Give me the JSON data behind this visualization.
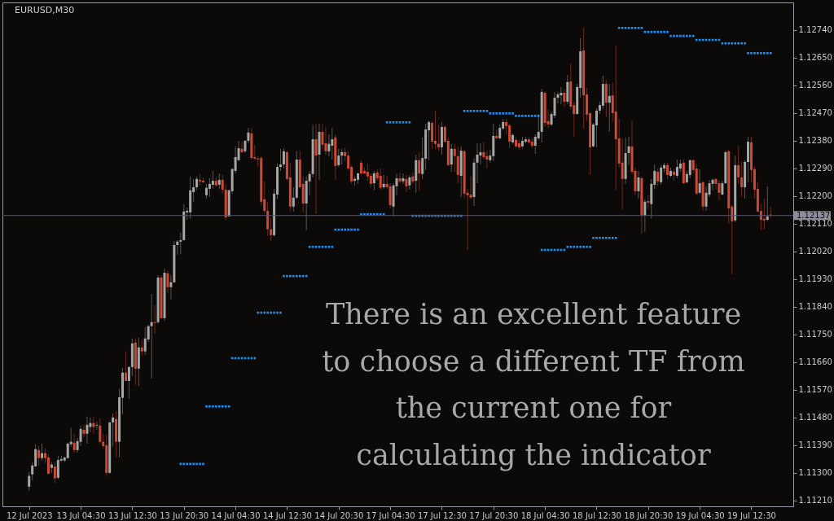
{
  "chart_data": {
    "type": "candlestick",
    "title": "EURUSD,M30",
    "categories": [
      "12 Jul 2023",
      null,
      null,
      null,
      null,
      null,
      null,
      null,
      null,
      null,
      null,
      null,
      null,
      null,
      null,
      null,
      "13 Jul 04:30",
      null,
      null,
      null,
      null,
      null,
      null,
      null,
      null,
      null,
      null,
      null,
      null,
      null,
      null,
      null,
      "13 Jul 12:30",
      null,
      null,
      null,
      null,
      null,
      null,
      null,
      null,
      null,
      null,
      null,
      null,
      null,
      null,
      null,
      "13 Jul 20:30",
      null,
      null,
      null,
      null,
      null,
      null,
      null,
      null,
      null,
      null,
      null,
      null,
      null,
      null,
      null,
      "14 Jul 04:30",
      null,
      null,
      null,
      null,
      null,
      null,
      null,
      null,
      null,
      null,
      null,
      null,
      null,
      null,
      null,
      "14 Jul 12:30",
      null,
      null,
      null,
      null,
      null,
      null,
      null,
      null,
      null,
      null,
      null,
      null,
      null,
      null,
      null,
      "14 Jul 20:30",
      null,
      null,
      null,
      null,
      null,
      null,
      null,
      null,
      null,
      null,
      null,
      null,
      null,
      null,
      null,
      "17 Jul 04:30",
      null,
      null,
      null,
      null,
      null,
      null,
      null,
      null,
      null,
      null,
      null,
      null,
      null,
      null,
      null,
      "17 Jul 12:30",
      null,
      null,
      null,
      null,
      null,
      null,
      null,
      null,
      null,
      null,
      null,
      null,
      null,
      null,
      null,
      "17 Jul 20:30",
      null,
      null,
      null,
      null,
      null,
      null,
      null,
      null,
      null,
      null,
      null,
      null,
      null,
      null,
      null,
      "18 Jul 04:30",
      null,
      null,
      null,
      null,
      null,
      null,
      null,
      null,
      null,
      null,
      null,
      null,
      null,
      null,
      null,
      "18 Jul 12:30",
      null,
      null,
      null,
      null,
      null,
      null,
      null,
      null,
      null,
      null,
      null,
      null,
      null,
      null,
      null,
      "18 Jul 20:30",
      null,
      null,
      null,
      null,
      null,
      null,
      null,
      null,
      null,
      null,
      null,
      null,
      null,
      null,
      null,
      "19 Jul 04:30",
      null,
      null,
      null,
      null,
      null,
      null,
      null,
      null,
      null,
      null,
      null,
      null,
      null,
      null,
      null,
      "19 Jul 12:30",
      null,
      null,
      null,
      null,
      null,
      null
    ],
    "ohlc": [
      [
        1.11255,
        1.11303,
        1.11242,
        1.1129
      ],
      [
        1.11295,
        1.11335,
        1.11276,
        1.11324
      ],
      [
        1.11321,
        1.11393,
        1.11319,
        1.11377
      ],
      [
        1.11374,
        1.11387,
        1.11324,
        1.11348
      ],
      [
        1.11348,
        1.11395,
        1.1134,
        1.11364
      ],
      [
        1.11364,
        1.1138,
        1.11332,
        1.11348
      ],
      [
        1.1135,
        1.11361,
        1.11295,
        1.11297
      ],
      [
        1.11316,
        1.11335,
        1.113,
        1.11327
      ],
      [
        1.11321,
        1.11337,
        1.11268,
        1.11282
      ],
      [
        1.11284,
        1.11356,
        1.11279,
        1.11342
      ],
      [
        1.1134,
        1.11356,
        1.11335,
        1.11345
      ],
      [
        1.1134,
        1.11353,
        1.11335,
        1.1135
      ],
      [
        1.11348,
        1.11398,
        1.11345,
        1.11395
      ],
      [
        1.11393,
        1.11446,
        1.11385,
        1.11401
      ],
      [
        1.11398,
        1.11427,
        1.11366,
        1.11374
      ],
      [
        1.11374,
        1.11414,
        1.11366,
        1.11403
      ],
      [
        1.11401,
        1.11454,
        1.11387,
        1.11443
      ],
      [
        1.1144,
        1.11456,
        1.11417,
        1.11427
      ],
      [
        1.11427,
        1.11483,
        1.11395,
        1.11456
      ],
      [
        1.11449,
        1.1148,
        1.11432,
        1.11462
      ],
      [
        1.11462,
        1.11483,
        1.11427,
        1.11449
      ],
      [
        1.11454,
        1.11467,
        1.1144,
        1.11456
      ],
      [
        1.11454,
        1.11478,
        1.11395,
        1.11401
      ],
      [
        1.11401,
        1.11427,
        1.1138,
        1.11387
      ],
      [
        1.1139,
        1.11424,
        1.1129,
        1.113
      ],
      [
        1.113,
        1.11467,
        1.11297,
        1.11464
      ],
      [
        1.11464,
        1.11493,
        1.11385,
        1.1148
      ],
      [
        1.11475,
        1.11501,
        1.1135,
        1.11401
      ],
      [
        1.11401,
        1.11573,
        1.1135,
        1.11546
      ],
      [
        1.11544,
        1.11642,
        1.11491,
        1.11626
      ],
      [
        1.11626,
        1.11695,
        1.11599,
        1.11599
      ],
      [
        1.11599,
        1.11647,
        1.11541,
        1.11644
      ],
      [
        1.11644,
        1.11737,
        1.11615,
        1.11721
      ],
      [
        1.11724,
        1.11737,
        1.11586,
        1.11639
      ],
      [
        1.11639,
        1.1174,
        1.11583,
        1.11708
      ],
      [
        1.11708,
        1.11732,
        1.11681,
        1.11695
      ],
      [
        1.11695,
        1.11774,
        1.11684,
        1.11737
      ],
      [
        1.11734,
        1.11782,
        1.11726,
        1.11777
      ],
      [
        1.11777,
        1.11882,
        1.11607,
        1.1179
      ],
      [
        1.1179,
        1.11845,
        1.11753,
        1.11787
      ],
      [
        1.1179,
        1.11943,
        1.11785,
        1.11935
      ],
      [
        1.11935,
        1.11943,
        1.11803,
        1.11803
      ],
      [
        1.11803,
        1.11965,
        1.11795,
        1.11951
      ],
      [
        1.11949,
        1.11957,
        1.11885,
        1.11904
      ],
      [
        1.11904,
        1.11943,
        1.11864,
        1.1192
      ],
      [
        1.1192,
        1.12055,
        1.11917,
        1.12041
      ],
      [
        1.12041,
        1.12057,
        1.1201,
        1.12052
      ],
      [
        1.12052,
        1.12081,
        1.12012,
        1.12057
      ],
      [
        1.12057,
        1.12174,
        1.12055,
        1.1215
      ],
      [
        1.12147,
        1.12163,
        1.12123,
        1.12152
      ],
      [
        1.12147,
        1.12264,
        1.12126,
        1.12219
      ],
      [
        1.12213,
        1.12256,
        1.12182,
        1.12229
      ],
      [
        1.12229,
        1.12264,
        1.12219,
        1.12256
      ],
      [
        1.12253,
        1.12272,
        1.12235,
        1.12248
      ],
      [
        1.1225,
        1.12261,
        1.12242,
        1.12245
      ],
      [
        1.12203,
        1.1224,
        1.12192,
        1.12227
      ],
      [
        1.12224,
        1.12259,
        1.12197,
        1.1224
      ],
      [
        1.12237,
        1.12282,
        1.12224,
        1.1225
      ],
      [
        1.1225,
        1.12261,
        1.12229,
        1.12235
      ],
      [
        1.12237,
        1.12274,
        1.12224,
        1.12253
      ],
      [
        1.12253,
        1.12269,
        1.12208,
        1.12221
      ],
      [
        1.12221,
        1.1224,
        1.12123,
        1.12131
      ],
      [
        1.12134,
        1.12221,
        1.12134,
        1.12219
      ],
      [
        1.12216,
        1.12293,
        1.12208,
        1.12288
      ],
      [
        1.12282,
        1.12362,
        1.12274,
        1.12327
      ],
      [
        1.12317,
        1.1238,
        1.12314,
        1.12356
      ],
      [
        1.12354,
        1.12377,
        1.1234,
        1.12343
      ],
      [
        1.12346,
        1.12382,
        1.1234,
        1.1238
      ],
      [
        1.1238,
        1.12422,
        1.12372,
        1.12407
      ],
      [
        1.12404,
        1.12422,
        1.12319,
        1.12324
      ],
      [
        1.12327,
        1.12367,
        1.12317,
        1.12322
      ],
      [
        1.12322,
        1.1233,
        1.12295,
        1.12319
      ],
      [
        1.12324,
        1.1233,
        1.12171,
        1.12182
      ],
      [
        1.1219,
        1.12248,
        1.12144,
        1.12152
      ],
      [
        1.12152,
        1.12182,
        1.1207,
        1.12092
      ],
      [
        1.12092,
        1.12129,
        1.12054,
        1.12073
      ],
      [
        1.12073,
        1.12224,
        1.12068,
        1.12208
      ],
      [
        1.12205,
        1.12306,
        1.1219,
        1.12295
      ],
      [
        1.12295,
        1.12354,
        1.12282,
        1.12303
      ],
      [
        1.12303,
        1.12356,
        1.1229,
        1.12346
      ],
      [
        1.12343,
        1.12348,
        1.1225,
        1.12256
      ],
      [
        1.12261,
        1.12309,
        1.1215,
        1.12166
      ],
      [
        1.12166,
        1.12229,
        1.1215,
        1.12195
      ],
      [
        1.12195,
        1.12346,
        1.1219,
        1.12319
      ],
      [
        1.12319,
        1.12348,
        1.12224,
        1.12229
      ],
      [
        1.1224,
        1.12264,
        1.12147,
        1.12176
      ],
      [
        1.12176,
        1.12264,
        1.12089,
        1.1225
      ],
      [
        1.12248,
        1.12282,
        1.12203,
        1.12272
      ],
      [
        1.12272,
        1.12433,
        1.12261,
        1.12385
      ],
      [
        1.12385,
        1.12436,
        1.12142,
        1.12332
      ],
      [
        1.12335,
        1.12436,
        1.12253,
        1.12409
      ],
      [
        1.12409,
        1.12436,
        1.12354,
        1.12367
      ],
      [
        1.12372,
        1.12425,
        1.12335,
        1.12346
      ],
      [
        1.12346,
        1.12401,
        1.1233,
        1.1237
      ],
      [
        1.12364,
        1.12422,
        1.12319,
        1.12385
      ],
      [
        1.12391,
        1.12401,
        1.12253,
        1.12298
      ],
      [
        1.12301,
        1.12354,
        1.12295,
        1.12332
      ],
      [
        1.12332,
        1.12354,
        1.12303,
        1.12343
      ],
      [
        1.12343,
        1.12359,
        1.12314,
        1.1233
      ],
      [
        1.12332,
        1.12346,
        1.12285,
        1.1229
      ],
      [
        1.12295,
        1.12301,
        1.1224,
        1.12248
      ],
      [
        1.1225,
        1.12264,
        1.12235,
        1.12256
      ],
      [
        1.12253,
        1.12277,
        1.1224,
        1.12274
      ],
      [
        1.12309,
        1.12317,
        1.12269,
        1.12274
      ],
      [
        1.12282,
        1.12293,
        1.12272,
        1.12274
      ],
      [
        1.12279,
        1.12306,
        1.1225,
        1.12264
      ],
      [
        1.12266,
        1.12274,
        1.12229,
        1.1224
      ],
      [
        1.12242,
        1.12282,
        1.12219,
        1.12274
      ],
      [
        1.12277,
        1.12288,
        1.1225,
        1.12258
      ],
      [
        1.12266,
        1.1229,
        1.12221,
        1.12227
      ],
      [
        1.12229,
        1.12269,
        1.12224,
        1.1224
      ],
      [
        1.1224,
        1.12266,
        1.12224,
        1.12229
      ],
      [
        1.12232,
        1.12242,
        1.1216,
        1.12171
      ],
      [
        1.12166,
        1.12242,
        1.12134,
        1.12235
      ],
      [
        1.12232,
        1.12272,
        1.12203,
        1.12258
      ],
      [
        1.12258,
        1.12277,
        1.12242,
        1.12248
      ],
      [
        1.12248,
        1.12274,
        1.1224,
        1.12258
      ],
      [
        1.12256,
        1.12269,
        1.12213,
        1.12232
      ],
      [
        1.12235,
        1.12269,
        1.12221,
        1.12261
      ],
      [
        1.12264,
        1.12277,
        1.1224,
        1.12248
      ],
      [
        1.1225,
        1.12335,
        1.12211,
        1.12317
      ],
      [
        1.12317,
        1.12343,
        1.12219,
        1.12274
      ],
      [
        1.12272,
        1.12391,
        1.12256,
        1.12324
      ],
      [
        1.12322,
        1.12436,
        1.12285,
        1.12417
      ],
      [
        1.12414,
        1.12446,
        1.12317,
        1.12441
      ],
      [
        1.12438,
        1.12444,
        1.12354,
        1.12377
      ],
      [
        1.1238,
        1.12478,
        1.12354,
        1.1237
      ],
      [
        1.1237,
        1.12433,
        1.12348,
        1.12359
      ],
      [
        1.12359,
        1.12441,
        1.12335,
        1.12425
      ],
      [
        1.12425,
        1.1243,
        1.12372,
        1.12377
      ],
      [
        1.1238,
        1.12391,
        1.12298,
        1.12301
      ],
      [
        1.12303,
        1.1237,
        1.12279,
        1.12354
      ],
      [
        1.12354,
        1.1237,
        1.12279,
        1.1233
      ],
      [
        1.1233,
        1.12362,
        1.12242,
        1.12269
      ],
      [
        1.12266,
        1.12362,
        1.12197,
        1.12348
      ],
      [
        1.12346,
        1.12351,
        1.12192,
        1.12208
      ],
      [
        1.12211,
        1.12224,
        1.12025,
        1.12203
      ],
      [
        1.12205,
        1.12264,
        1.1219,
        1.12195
      ],
      [
        1.12197,
        1.12324,
        1.12168,
        1.12309
      ],
      [
        1.12309,
        1.12372,
        1.12242,
        1.12335
      ],
      [
        1.12332,
        1.12372,
        1.12303,
        1.12343
      ],
      [
        1.12343,
        1.12375,
        1.12319,
        1.12327
      ],
      [
        1.1233,
        1.12348,
        1.1229,
        1.12319
      ],
      [
        1.12317,
        1.12351,
        1.12309,
        1.12332
      ],
      [
        1.1233,
        1.12436,
        1.12314,
        1.12396
      ],
      [
        1.12396,
        1.12417,
        1.12385,
        1.12388
      ],
      [
        1.12388,
        1.12433,
        1.12385,
        1.12422
      ],
      [
        1.1242,
        1.12452,
        1.12414,
        1.12441
      ],
      [
        1.12441,
        1.12452,
        1.12401,
        1.12428
      ],
      [
        1.1243,
        1.12436,
        1.12356,
        1.12377
      ],
      [
        1.12375,
        1.12404,
        1.1237,
        1.12399
      ],
      [
        1.12383,
        1.12391,
        1.12356,
        1.12362
      ],
      [
        1.12372,
        1.12383,
        1.12351,
        1.12359
      ],
      [
        1.12362,
        1.12393,
        1.12356,
        1.1238
      ],
      [
        1.12377,
        1.12393,
        1.12372,
        1.12385
      ],
      [
        1.12385,
        1.12391,
        1.1237,
        1.12375
      ],
      [
        1.12377,
        1.12388,
        1.12356,
        1.12364
      ],
      [
        1.12364,
        1.12401,
        1.12338,
        1.12393
      ],
      [
        1.12388,
        1.12467,
        1.12383,
        1.12409
      ],
      [
        1.12409,
        1.12549,
        1.12375,
        1.12539
      ],
      [
        1.12536,
        1.12541,
        1.12425,
        1.12438
      ],
      [
        1.12444,
        1.12481,
        1.12422,
        1.12433
      ],
      [
        1.12433,
        1.12475,
        1.12428,
        1.12467
      ],
      [
        1.12462,
        1.12539,
        1.12454,
        1.1252
      ],
      [
        1.1252,
        1.12539,
        1.12502,
        1.12531
      ],
      [
        1.12528,
        1.12555,
        1.12499,
        1.12536
      ],
      [
        1.12536,
        1.12549,
        1.12491,
        1.12507
      ],
      [
        1.12507,
        1.12594,
        1.12499,
        1.12571
      ],
      [
        1.12573,
        1.12632,
        1.12483,
        1.12491
      ],
      [
        1.12496,
        1.12507,
        1.12393,
        1.12467
      ],
      [
        1.12467,
        1.12565,
        1.12465,
        1.12555
      ],
      [
        1.12552,
        1.12714,
        1.1252,
        1.12671
      ],
      [
        1.12674,
        1.12748,
        1.1242,
        1.12528
      ],
      [
        1.12531,
        1.12552,
        1.12444,
        1.12465
      ],
      [
        1.1247,
        1.12473,
        1.12269,
        1.12359
      ],
      [
        1.12362,
        1.12438,
        1.12359,
        1.12433
      ],
      [
        1.1243,
        1.12486,
        1.12359,
        1.12478
      ],
      [
        1.12478,
        1.12507,
        1.12467,
        1.12496
      ],
      [
        1.12494,
        1.12592,
        1.12483,
        1.12565
      ],
      [
        1.12565,
        1.12579,
        1.12457,
        1.12504
      ],
      [
        1.12504,
        1.12565,
        1.12409,
        1.12526
      ],
      [
        1.12528,
        1.12568,
        1.12441,
        1.1247
      ],
      [
        1.12475,
        1.1269,
        1.12219,
        1.12385
      ],
      [
        1.12388,
        1.12452,
        1.12293,
        1.12306
      ],
      [
        1.12309,
        1.12388,
        1.12158,
        1.12256
      ],
      [
        1.12256,
        1.12391,
        1.1224,
        1.1234
      ],
      [
        1.1234,
        1.12393,
        1.12301,
        1.12362
      ],
      [
        1.12362,
        1.12446,
        1.12272,
        1.12279
      ],
      [
        1.12282,
        1.12293,
        1.12203,
        1.12216
      ],
      [
        1.12216,
        1.12282,
        1.12192,
        1.12261
      ],
      [
        1.12258,
        1.12264,
        1.12078,
        1.12137
      ],
      [
        1.12137,
        1.1219,
        1.12084,
        1.12182
      ],
      [
        1.12184,
        1.12203,
        1.12158,
        1.12179
      ],
      [
        1.12174,
        1.12256,
        1.12126,
        1.1224
      ],
      [
        1.12237,
        1.12303,
        1.12224,
        1.12282
      ],
      [
        1.12279,
        1.1229,
        1.12232,
        1.12248
      ],
      [
        1.12245,
        1.12301,
        1.12237,
        1.12293
      ],
      [
        1.1229,
        1.12309,
        1.12277,
        1.12301
      ],
      [
        1.12301,
        1.12309,
        1.12256,
        1.12269
      ],
      [
        1.12266,
        1.12293,
        1.12261,
        1.12282
      ],
      [
        1.12279,
        1.12288,
        1.1225,
        1.12269
      ],
      [
        1.12266,
        1.12319,
        1.12258,
        1.12295
      ],
      [
        1.1229,
        1.12319,
        1.12279,
        1.12306
      ],
      [
        1.12309,
        1.12319,
        1.1224,
        1.12242
      ],
      [
        1.12245,
        1.12282,
        1.12242,
        1.12272
      ],
      [
        1.12269,
        1.12319,
        1.12258,
        1.12317
      ],
      [
        1.12317,
        1.12319,
        1.12274,
        1.12285
      ],
      [
        1.1229,
        1.12306,
        1.12203,
        1.12208
      ],
      [
        1.12211,
        1.12288,
        1.12205,
        1.12242
      ],
      [
        1.12245,
        1.1225,
        1.12152,
        1.12166
      ],
      [
        1.12166,
        1.12232,
        1.12152,
        1.12211
      ],
      [
        1.12205,
        1.12253,
        1.12197,
        1.12242
      ],
      [
        1.1224,
        1.12258,
        1.12219,
        1.12253
      ],
      [
        1.12256,
        1.12258,
        1.12221,
        1.1224
      ],
      [
        1.12242,
        1.1225,
        1.12187,
        1.12211
      ],
      [
        1.12205,
        1.1225,
        1.12203,
        1.12242
      ],
      [
        1.12242,
        1.12348,
        1.1224,
        1.12343
      ],
      [
        1.12346,
        1.12351,
        1.1211,
        1.1216
      ],
      [
        1.12166,
        1.12171,
        1.11946,
        1.12118
      ],
      [
        1.12121,
        1.12332,
        1.12115,
        1.12301
      ],
      [
        1.12301,
        1.12364,
        1.12242,
        1.12261
      ],
      [
        1.12261,
        1.12311,
        1.122,
        1.12229
      ],
      [
        1.12229,
        1.12317,
        1.12192,
        1.12311
      ],
      [
        1.12311,
        1.12393,
        1.12245,
        1.12377
      ],
      [
        1.12375,
        1.12393,
        1.12245,
        1.12285
      ],
      [
        1.12288,
        1.12298,
        1.12192,
        1.12221
      ],
      [
        1.12224,
        1.12245,
        1.12147,
        1.1215
      ],
      [
        1.12152,
        1.12176,
        1.12089,
        1.12123
      ],
      [
        1.12126,
        1.12192,
        1.12092,
        1.12121
      ],
      [
        1.12123,
        1.12232,
        1.12118,
        1.12134
      ],
      [
        1.1214,
        1.12166,
        1.12129,
        1.12137
      ]
    ],
    "colors": [
      "#a6a6a6",
      "#a6a6a6",
      "#a6a6a6",
      "#cc4a35",
      "#a6a6a6",
      "#cc4a35",
      "#cc4a35",
      "#a6a6a6",
      "#cc4a35",
      "#a6a6a6",
      "#a6a6a6",
      "#a6a6a6",
      "#a6a6a6",
      "#a6a6a6",
      "#cc4a35",
      "#a6a6a6",
      "#a6a6a6",
      "#cc4a35",
      "#a6a6a6",
      "#a6a6a6",
      "#cc4a35",
      "#a6a6a6",
      "#cc4a35",
      "#cc4a35",
      "#cc4a35",
      "#a6a6a6",
      "#a6a6a6",
      "#cc4a35",
      "#a6a6a6",
      "#a6a6a6",
      "#cc4a35",
      "#a6a6a6",
      "#a6a6a6",
      "#cc4a35",
      "#a6a6a6",
      "#cc4a35",
      "#a6a6a6",
      "#a6a6a6",
      "#a6a6a6",
      "#cc4a35",
      "#a6a6a6",
      "#cc4a35",
      "#a6a6a6",
      "#cc4a35",
      "#a6a6a6",
      "#a6a6a6",
      "#a6a6a6",
      "#a6a6a6",
      "#a6a6a6",
      "#a6a6a6",
      "#a6a6a6",
      "#a6a6a6",
      "#a6a6a6",
      "#cc4a35",
      "#cc4a35",
      "#a6a6a6",
      "#a6a6a6",
      "#a6a6a6",
      "#cc4a35",
      "#a6a6a6",
      "#cc4a35",
      "#cc4a35",
      "#a6a6a6",
      "#a6a6a6",
      "#a6a6a6",
      "#a6a6a6",
      "#cc4a35",
      "#a6a6a6",
      "#a6a6a6",
      "#cc4a35",
      "#cc4a35",
      "#cc4a35",
      "#cc4a35",
      "#cc4a35",
      "#cc4a35",
      "#cc4a35",
      "#a6a6a6",
      "#a6a6a6",
      "#a6a6a6",
      "#a6a6a6",
      "#cc4a35",
      "#cc4a35",
      "#a6a6a6",
      "#a6a6a6",
      "#cc4a35",
      "#cc4a35",
      "#a6a6a6",
      "#a6a6a6",
      "#a6a6a6",
      "#cc4a35",
      "#a6a6a6",
      "#cc4a35",
      "#cc4a35",
      "#a6a6a6",
      "#a6a6a6",
      "#cc4a35",
      "#a6a6a6",
      "#a6a6a6",
      "#cc4a35",
      "#cc4a35",
      "#cc4a35",
      "#a6a6a6",
      "#a6a6a6",
      "#cc4a35",
      "#cc4a35",
      "#cc4a35",
      "#cc4a35",
      "#a6a6a6",
      "#cc4a35",
      "#cc4a35",
      "#a6a6a6",
      "#cc4a35",
      "#cc4a35",
      "#a6a6a6",
      "#a6a6a6",
      "#cc4a35",
      "#a6a6a6",
      "#cc4a35",
      "#a6a6a6",
      "#cc4a35",
      "#a6a6a6",
      "#cc4a35",
      "#a6a6a6",
      "#a6a6a6",
      "#a6a6a6",
      "#cc4a35",
      "#cc4a35",
      "#cc4a35",
      "#a6a6a6",
      "#cc4a35",
      "#cc4a35",
      "#a6a6a6",
      "#cc4a35",
      "#cc4a35",
      "#a6a6a6",
      "#cc4a35",
      "#cc4a35",
      "#cc4a35",
      "#a6a6a6",
      "#a6a6a6",
      "#a6a6a6",
      "#cc4a35",
      "#cc4a35",
      "#a6a6a6",
      "#a6a6a6",
      "#cc4a35",
      "#a6a6a6",
      "#a6a6a6",
      "#cc4a35",
      "#cc4a35",
      "#a6a6a6",
      "#cc4a35",
      "#cc4a35",
      "#a6a6a6",
      "#a6a6a6",
      "#cc4a35",
      "#cc4a35",
      "#a6a6a6",
      "#a6a6a6",
      "#a6a6a6",
      "#cc4a35",
      "#cc4a35",
      "#a6a6a6",
      "#a6a6a6",
      "#a6a6a6",
      "#a6a6a6",
      "#cc4a35",
      "#a6a6a6",
      "#cc4a35",
      "#cc4a35",
      "#a6a6a6",
      "#a6a6a6",
      "#cc4a35",
      "#cc4a35",
      "#cc4a35",
      "#a6a6a6",
      "#a6a6a6",
      "#a6a6a6",
      "#a6a6a6",
      "#cc4a35",
      "#a6a6a6",
      "#cc4a35",
      "#cc4a35",
      "#cc4a35",
      "#cc4a35",
      "#a6a6a6",
      "#a6a6a6",
      "#cc4a35",
      "#cc4a35",
      "#a6a6a6",
      "#cc4a35",
      "#a6a6a6",
      "#cc4a35",
      "#a6a6a6",
      "#a6a6a6",
      "#cc4a35",
      "#a6a6a6",
      "#a6a6a6",
      "#cc4a35",
      "#a6a6a6",
      "#cc4a35",
      "#a6a6a6",
      "#a6a6a6",
      "#cc4a35",
      "#a6a6a6",
      "#a6a6a6",
      "#cc4a35",
      "#cc4a35",
      "#a6a6a6",
      "#cc4a35",
      "#a6a6a6",
      "#a6a6a6",
      "#a6a6a6",
      "#cc4a35",
      "#cc4a35",
      "#a6a6a6",
      "#a6a6a6",
      "#cc4a35",
      "#cc4a35",
      "#a6a6a6",
      "#cc4a35",
      "#cc4a35",
      "#a6a6a6",
      "#a6a6a6",
      "#cc4a35",
      "#cc4a35",
      "#cc4a35",
      "#cc4a35",
      "#cc4a35",
      "#a6a6a6",
      "#cc4a35"
    ],
    "series": [
      {
        "type": "scatter",
        "color": "#1e8ff0",
        "marker": "square",
        "values": [
          null,
          null,
          null,
          null,
          null,
          null,
          null,
          null,
          null,
          null,
          null,
          null,
          null,
          null,
          null,
          null,
          null,
          null,
          null,
          null,
          null,
          null,
          null,
          null,
          null,
          null,
          null,
          null,
          null,
          null,
          null,
          null,
          null,
          null,
          null,
          null,
          null,
          null,
          null,
          null,
          null,
          null,
          null,
          null,
          null,
          null,
          null,
          1.11329,
          1.11329,
          1.11329,
          1.11329,
          1.11329,
          1.11329,
          1.11329,
          1.11329,
          1.11516,
          1.11516,
          1.11516,
          1.11516,
          1.11516,
          1.11516,
          1.11516,
          1.11516,
          1.11673,
          1.11673,
          1.11673,
          1.11673,
          1.11673,
          1.11673,
          1.11673,
          1.11673,
          1.11821,
          1.11821,
          1.11821,
          1.11821,
          1.11821,
          1.11821,
          1.11821,
          1.11821,
          1.1194,
          1.1194,
          1.1194,
          1.1194,
          1.1194,
          1.1194,
          1.1194,
          1.1194,
          1.12035,
          1.12035,
          1.12035,
          1.12035,
          1.12035,
          1.12035,
          1.12035,
          1.12035,
          1.12091,
          1.12091,
          1.12091,
          1.12091,
          1.12091,
          1.12091,
          1.12091,
          1.12091,
          1.12141,
          1.12141,
          1.12141,
          1.12141,
          1.12141,
          1.12141,
          1.12141,
          1.12141,
          1.1244,
          1.1244,
          1.1244,
          1.1244,
          1.1244,
          1.1244,
          1.1244,
          1.1244,
          1.12136,
          1.12136,
          1.12136,
          1.12136,
          1.12136,
          1.12136,
          1.12136,
          1.12136,
          1.12136,
          1.12136,
          1.12136,
          1.12136,
          1.12136,
          1.12136,
          1.12136,
          1.12136,
          1.12477,
          1.12477,
          1.12477,
          1.12477,
          1.12477,
          1.12477,
          1.12477,
          1.12477,
          1.12469,
          1.12469,
          1.12469,
          1.12469,
          1.12469,
          1.12469,
          1.12469,
          1.12469,
          1.12461,
          1.12461,
          1.12461,
          1.12461,
          1.12461,
          1.12461,
          1.12461,
          1.12461,
          1.12025,
          1.12025,
          1.12025,
          1.12025,
          1.12025,
          1.12025,
          1.12025,
          1.12025,
          1.12035,
          1.12035,
          1.12035,
          1.12035,
          1.12035,
          1.12035,
          1.12035,
          1.12035,
          1.12064,
          1.12064,
          1.12064,
          1.12064,
          1.12064,
          1.12064,
          1.12064,
          1.12064,
          1.12747,
          1.12747,
          1.12747,
          1.12747,
          1.12747,
          1.12747,
          1.12747,
          1.12747,
          1.12734,
          1.12734,
          1.12734,
          1.12734,
          1.12734,
          1.12734,
          1.12734,
          1.12734,
          1.12721,
          1.12721,
          1.12721,
          1.12721,
          1.12721,
          1.12721,
          1.12721,
          1.12721,
          1.12708,
          1.12708,
          1.12708,
          1.12708,
          1.12708,
          1.12708,
          1.12708,
          1.12708,
          1.12697,
          1.12697,
          1.12697,
          1.12697,
          1.12697,
          1.12697,
          1.12697,
          1.12697,
          1.12665,
          1.12665,
          1.12665,
          1.12665,
          1.12665,
          1.12665,
          1.12665,
          1.12665
        ]
      }
    ],
    "ylim": [
      1.11191,
      1.1283
    ],
    "yticks": [
      {
        "value": 1.1274,
        "label": "1.12740"
      },
      {
        "value": 1.1265,
        "label": "1.12650"
      },
      {
        "value": 1.1256,
        "label": "1.12560"
      },
      {
        "value": 1.1247,
        "label": "1.12470"
      },
      {
        "value": 1.1238,
        "label": "1.12380"
      },
      {
        "value": 1.1229,
        "label": "1.12290"
      },
      {
        "value": 1.122,
        "label": "1.12200"
      },
      {
        "value": 1.1211,
        "label": "1.12110"
      },
      {
        "value": 1.1202,
        "label": "1.12020"
      },
      {
        "value": 1.1193,
        "label": "1.11930"
      },
      {
        "value": 1.1184,
        "label": "1.11840"
      },
      {
        "value": 1.1175,
        "label": "1.11750"
      },
      {
        "value": 1.1166,
        "label": "1.11660"
      },
      {
        "value": 1.1157,
        "label": "1.11570"
      },
      {
        "value": 1.1148,
        "label": "1.11480"
      },
      {
        "value": 1.1139,
        "label": "1.11390"
      },
      {
        "value": 1.113,
        "label": "1.11300"
      },
      {
        "value": 1.1121,
        "label": "1.11210"
      }
    ],
    "ref_lines": [
      {
        "axis": "y",
        "value": 1.12137,
        "label": "1.12137",
        "color": "#55556a"
      }
    ],
    "annotations": [
      "There is an excellent feature to choose a different TF from the current one for calculating the indicator"
    ]
  }
}
